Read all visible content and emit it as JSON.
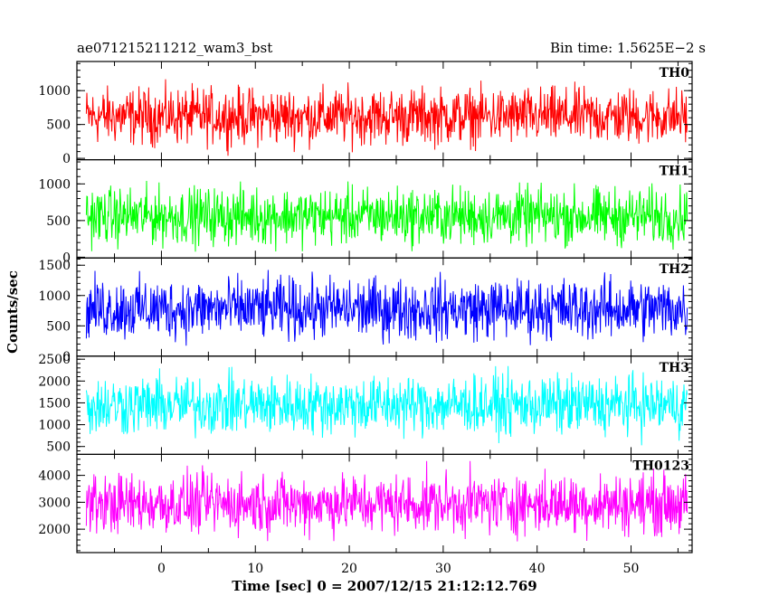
{
  "chart_data": {
    "type": "line",
    "title_left": "ae071215211212_wam3_bst",
    "title_right": "Bin time: 1.5625E−2 s",
    "xlabel": "Time [sec] 0 = 2007/12/15 21:12:12.769",
    "ylabel": "Counts/sec",
    "xlim": [
      -9,
      56.5
    ],
    "x_ticks": [
      0,
      10,
      20,
      30,
      40,
      50
    ],
    "x_data_range": [
      -8,
      56
    ],
    "bin_time": 0.015625,
    "grid": false,
    "panels": [
      {
        "name": "TH0",
        "color": "#ff0000",
        "ylim": [
          -20,
          1430
        ],
        "y_ticks": [
          0,
          500,
          1000
        ],
        "mean": 620,
        "spread": 430,
        "min": 0,
        "max": 1420
      },
      {
        "name": "TH1",
        "color": "#00ff00",
        "ylim": [
          -10,
          1330
        ],
        "y_ticks": [
          0,
          500,
          1000
        ],
        "mean": 560,
        "spread": 400,
        "min": 0,
        "max": 1320
      },
      {
        "name": "TH2",
        "color": "#0000ff",
        "ylim": [
          0,
          1620
        ],
        "y_ticks": [
          0,
          500,
          1000,
          1500
        ],
        "mean": 780,
        "spread": 520,
        "min": 0,
        "max": 1620
      },
      {
        "name": "TH3",
        "color": "#00ffff",
        "ylim": [
          320,
          2570
        ],
        "y_ticks": [
          500,
          1000,
          1500,
          2000,
          2500
        ],
        "mean": 1450,
        "spread": 700,
        "min": 320,
        "max": 2560
      },
      {
        "name": "TH0123",
        "color": "#ff00ff",
        "ylim": [
          1130,
          4780
        ],
        "y_ticks": [
          2000,
          3000,
          4000
        ],
        "mean": 2950,
        "spread": 1150,
        "min": 1130,
        "max": 4700
      }
    ]
  }
}
